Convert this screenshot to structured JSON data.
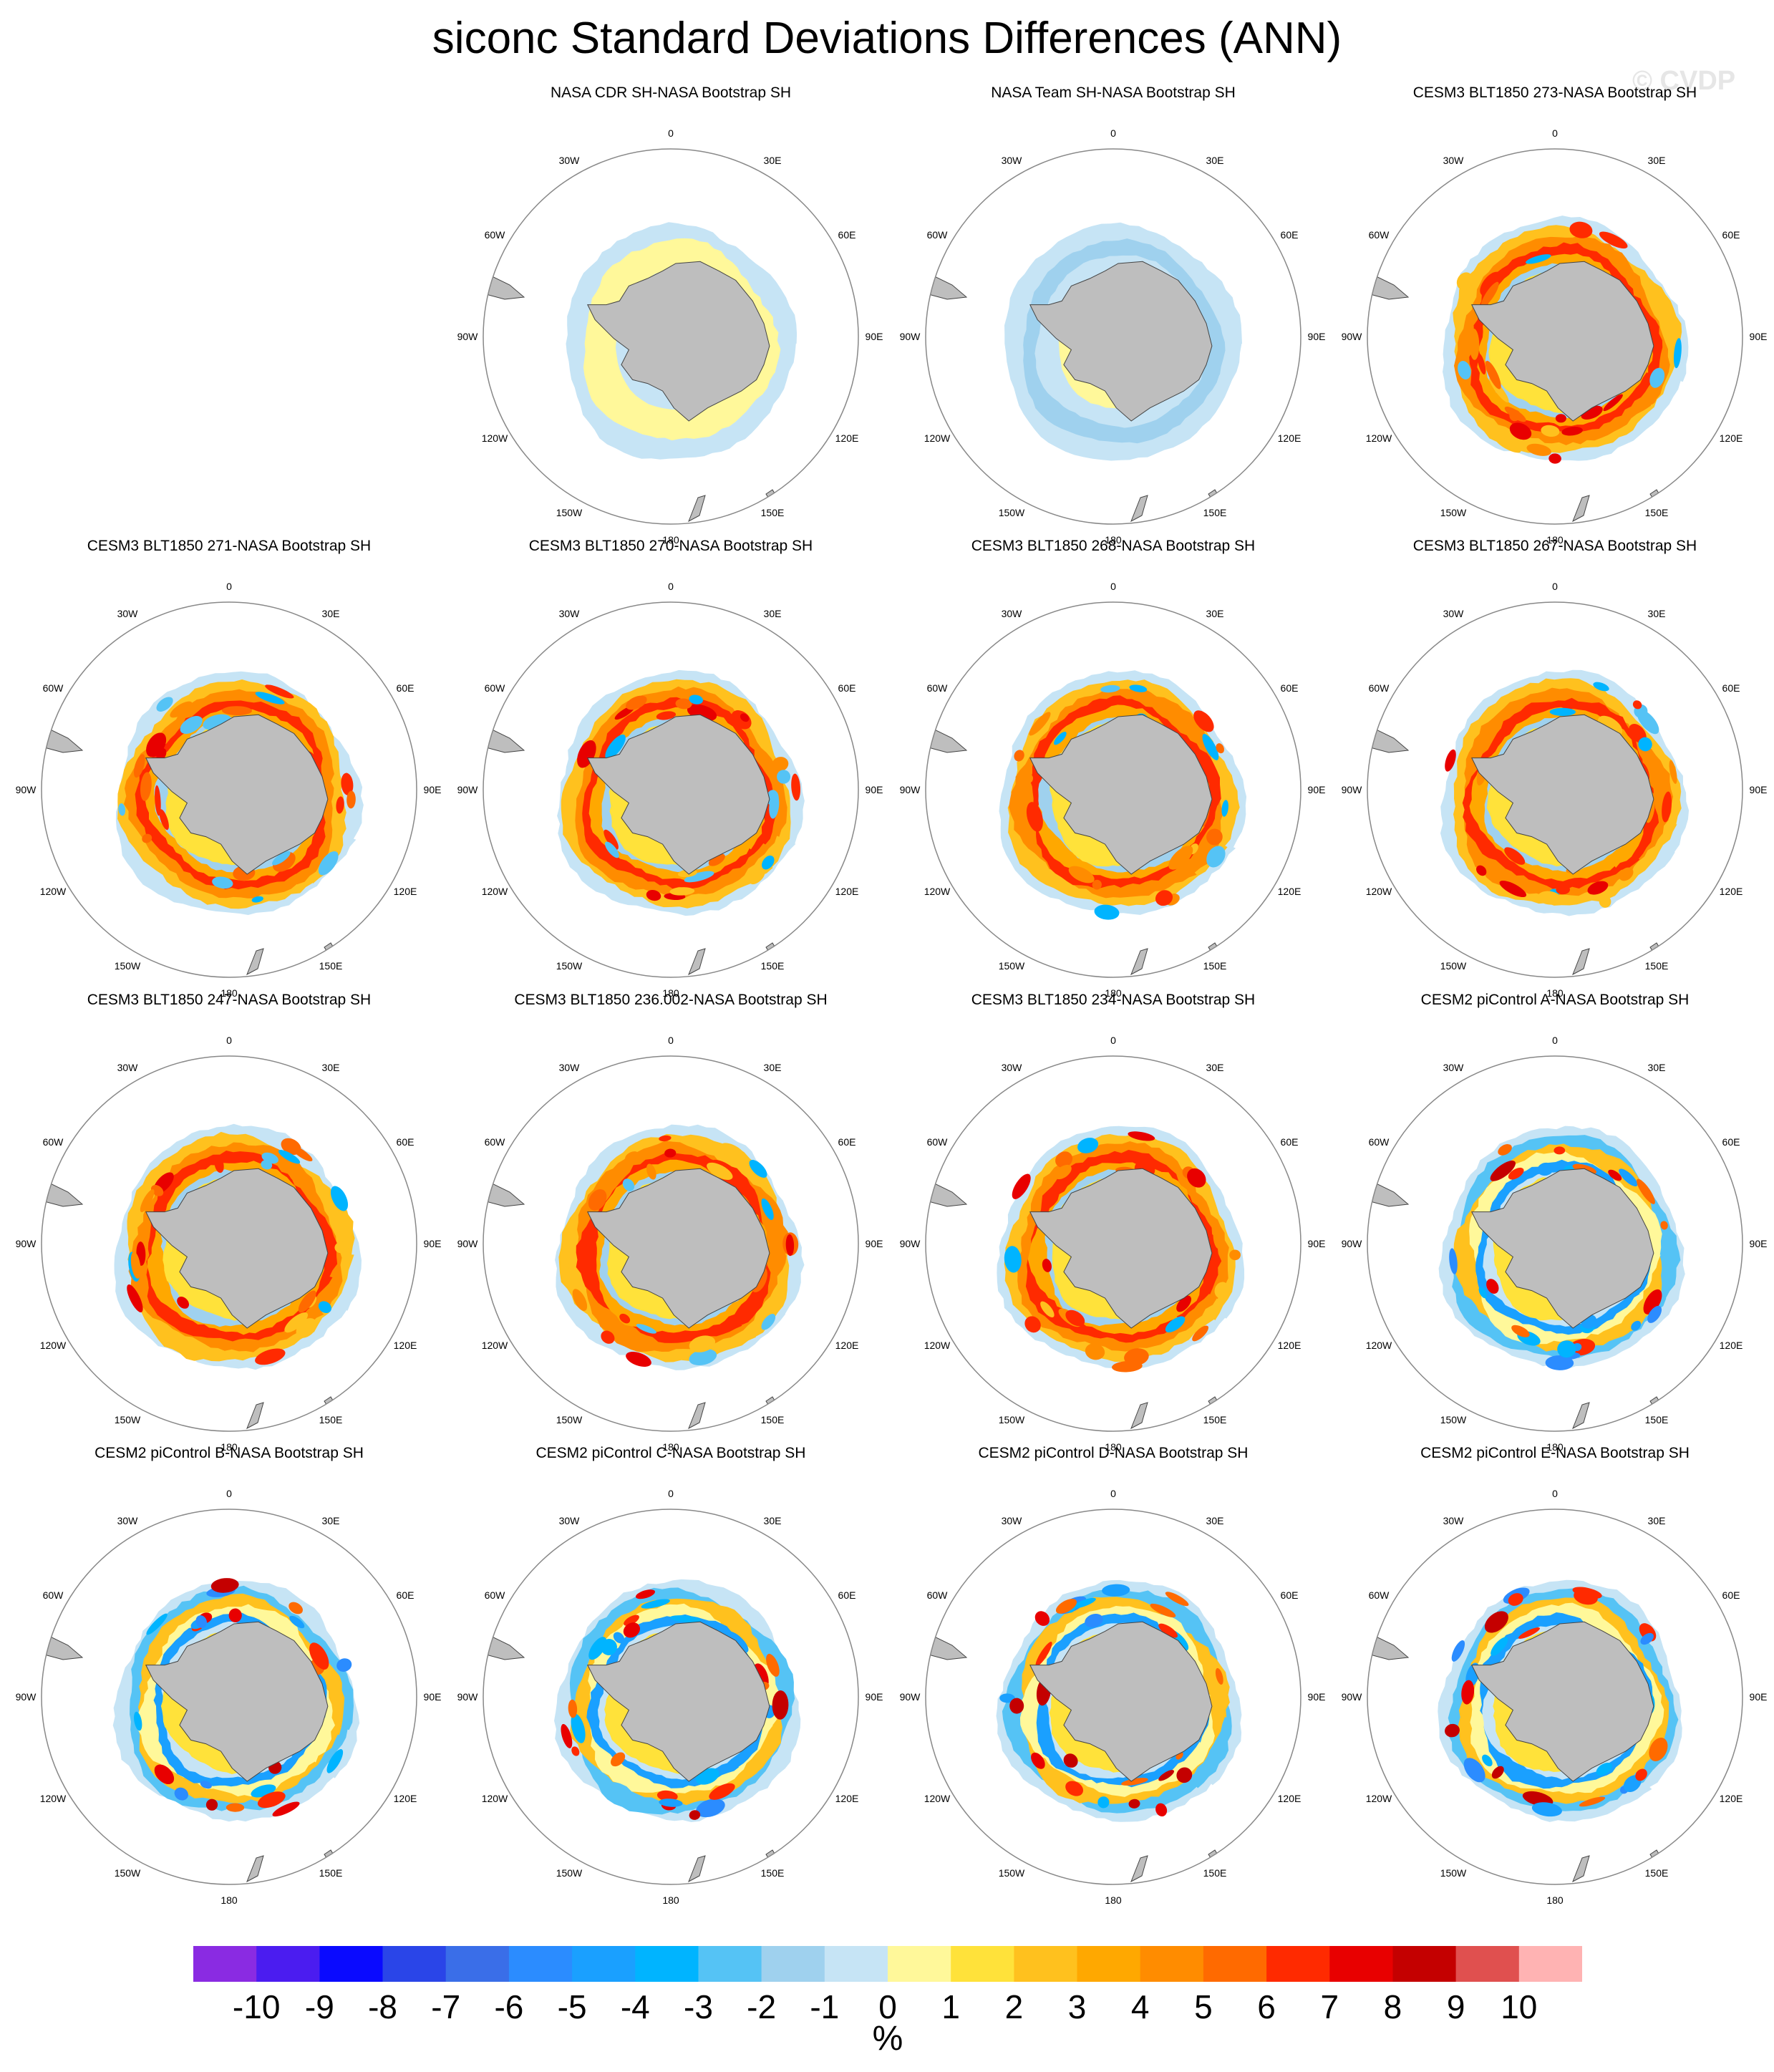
{
  "title": "siconc Standard Deviations Differences (ANN)",
  "watermark": "© CVDP",
  "units": "%",
  "chart_data": {
    "type": "heatmap",
    "projection": "south-polar-stereographic",
    "variable": "siconc",
    "season": "ANN",
    "longitude_labels": [
      "0",
      "30E",
      "60E",
      "90E",
      "120E",
      "150E",
      "180",
      "150W",
      "120W",
      "90W",
      "60W",
      "30W"
    ],
    "panels": [
      {
        "title": "NASA CDR SH-NASA Bootstrap SH",
        "style": "cdr"
      },
      {
        "title": "NASA Team SH-NASA Bootstrap SH",
        "style": "team"
      },
      {
        "title": "CESM3 BLT1850 273-NASA Bootstrap SH",
        "style": "cesm3"
      },
      {
        "title": "CESM3 BLT1850 271-NASA Bootstrap SH",
        "style": "cesm3"
      },
      {
        "title": "CESM3 BLT1850 270-NASA Bootstrap SH",
        "style": "cesm3"
      },
      {
        "title": "CESM3 BLT1850 268-NASA Bootstrap SH",
        "style": "cesm3"
      },
      {
        "title": "CESM3 BLT1850 267-NASA Bootstrap SH",
        "style": "cesm3"
      },
      {
        "title": "CESM3 BLT1850 247-NASA Bootstrap SH",
        "style": "cesm3"
      },
      {
        "title": "CESM3 BLT1850 236.002-NASA Bootstrap SH",
        "style": "cesm3"
      },
      {
        "title": "CESM3 BLT1850 234-NASA Bootstrap SH",
        "style": "cesm3"
      },
      {
        "title": "CESM2 piControl A-NASA Bootstrap SH",
        "style": "cesm2"
      },
      {
        "title": "CESM2 piControl B-NASA Bootstrap SH",
        "style": "cesm2"
      },
      {
        "title": "CESM2 piControl C-NASA Bootstrap SH",
        "style": "cesm2"
      },
      {
        "title": "CESM2 piControl D-NASA Bootstrap SH",
        "style": "cesm2"
      },
      {
        "title": "CESM2 piControl E-NASA Bootstrap SH",
        "style": "cesm2"
      }
    ],
    "colorbar": {
      "levels": [
        "-10",
        "-9",
        "-8",
        "-7",
        "-6",
        "-5",
        "-4",
        "-3",
        "-2",
        "-1",
        "0",
        "1",
        "2",
        "3",
        "4",
        "5",
        "6",
        "7",
        "8",
        "9",
        "10"
      ],
      "colors": [
        "#8a2be2",
        "#4b1cf0",
        "#0a0aff",
        "#2a45e8",
        "#3a6ee8",
        "#2b8cff",
        "#1aa0ff",
        "#00b4ff",
        "#55c3f5",
        "#9fd1ee",
        "#c6e4f5",
        "#fff89a",
        "#ffe23a",
        "#ffc11e",
        "#ffa800",
        "#ff8c00",
        "#ff6a00",
        "#ff2a00",
        "#e80000",
        "#c40000",
        "#e0504f",
        "#ffb3b3"
      ]
    },
    "land_color": "#bebebe"
  }
}
